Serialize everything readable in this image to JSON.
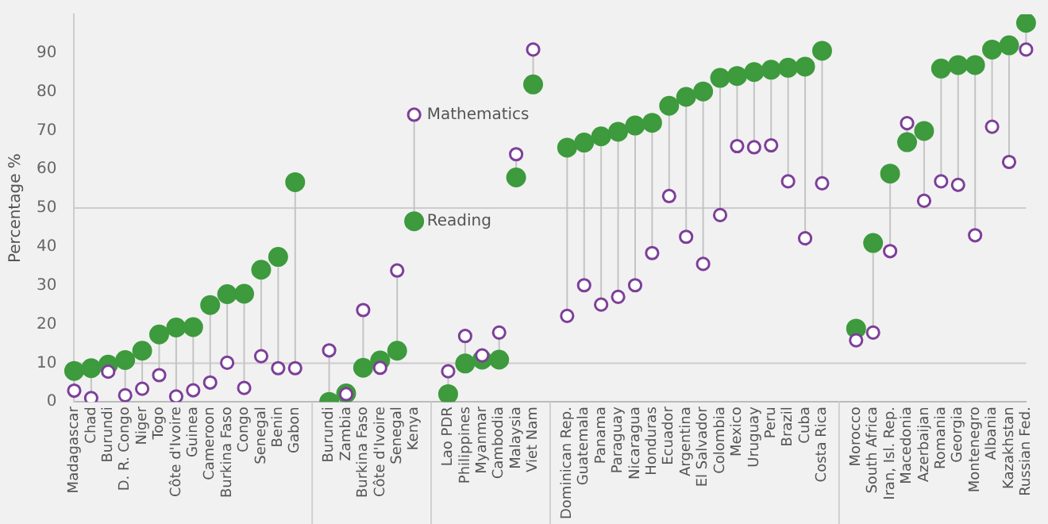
{
  "chart_data": {
    "type": "scatter",
    "ylabel": "Percentage %",
    "categories": [
      "Madagascar",
      "Chad",
      "Burundi",
      "D. R. Congo",
      "Niger",
      "Togo",
      "Côte d'Ivoire",
      "Guinea",
      "Cameroon",
      "Burkina Faso",
      "Congo",
      "Senegal",
      "Benin",
      "Gabon",
      null,
      "Burundi",
      "Zambia",
      "Burkina Faso",
      "Côte d'Ivoire",
      "Senegal",
      "Kenya",
      null,
      "Lao PDR",
      "Philippines",
      "Myanmar",
      "Cambodia",
      "Malaysia",
      "Viet Nam",
      null,
      "Dominican Rep.",
      "Guatemala",
      "Panama",
      "Paraguay",
      "Nicaragua",
      "Honduras",
      "Ecuador",
      "Argentina",
      "El Salvador",
      "Colombia",
      "Mexico",
      "Uruguay",
      "Peru",
      "Brazil",
      "Cuba",
      "Costa Rica",
      null,
      "Morocco",
      "South Africa",
      "Iran, Isl. Rep.",
      "Macedonia",
      "Azerbaijan",
      "Romania",
      "Georgia",
      "Montenegro",
      "Albania",
      "Kazakhstan",
      "Russian Fed."
    ],
    "series": [
      {
        "color": "#3d9a3d",
        "values": [
          8.0,
          8.7,
          9.6,
          10.8,
          13.2,
          17.4,
          19.2,
          19.3,
          25.0,
          27.8,
          27.9,
          34.1,
          37.4,
          56.7,
          null,
          0,
          2.2,
          8.8,
          10.7,
          13.2,
          46.6,
          null,
          2.0,
          9.9,
          10.9,
          10.9,
          57.9,
          81.9,
          null,
          65.6,
          66.9,
          68.5,
          69.7,
          71.3,
          72.0,
          76.4,
          78.7,
          80.1,
          83.6,
          84.1,
          85.1,
          85.7,
          86.2,
          86.5,
          90.6,
          null,
          18.9,
          41.0,
          58.9,
          67.0,
          69.9,
          86.0,
          86.9,
          86.9,
          90.9,
          92.0,
          97.8
        ]
      },
      {
        "color": "#7d3f99",
        "values": [
          2.9,
          1.0,
          7.8,
          1.7,
          3.4,
          6.9,
          1.4,
          3.0,
          5.0,
          10.1,
          3.6,
          11.8,
          8.7,
          8.7,
          null,
          13.3,
          2.0,
          23.7,
          8.8,
          33.9,
          74.1,
          null,
          7.9,
          17.0,
          12.0,
          17.9,
          63.9,
          90.9,
          null,
          22.2,
          30.1,
          25.1,
          27.1,
          30.1,
          38.4,
          53.1,
          42.6,
          35.6,
          48.2,
          66.0,
          65.7,
          66.2,
          56.9,
          42.2,
          56.4,
          null,
          15.9,
          17.9,
          38.9,
          71.9,
          51.9,
          56.9,
          56.0,
          43.0,
          71.0,
          61.9,
          90.9
        ]
      }
    ],
    "annotations": [
      {
        "text": "Mathematics",
        "x": "Kenya",
        "y": 74.1
      },
      {
        "text": "Reading",
        "x": "Kenya",
        "y": 46.6
      }
    ],
    "ref_lines": [
      {
        "axis": "y",
        "value": 10,
        "color": "#cccccc"
      },
      {
        "axis": "y",
        "value": 50,
        "color": "#cccccc"
      }
    ],
    "ylim": [
      0,
      100
    ],
    "yticks": [
      0,
      10,
      20,
      30,
      40,
      50,
      60,
      70,
      80,
      90
    ],
    "marker": "circle",
    "grid": false,
    "legend": false
  }
}
